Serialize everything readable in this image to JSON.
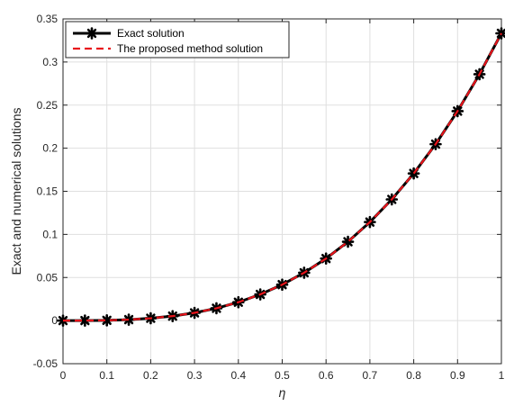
{
  "chart_data": {
    "type": "line",
    "xlabel": "η",
    "ylabel": "Exact and numerical solutions",
    "xlim": [
      0,
      1
    ],
    "ylim": [
      -0.05,
      0.35
    ],
    "grid": true,
    "legend_position": "top-left",
    "xticks": [
      "0",
      "0.1",
      "0.2",
      "0.3",
      "0.4",
      "0.5",
      "0.6",
      "0.7",
      "0.8",
      "0.9",
      "1"
    ],
    "yticks": [
      "-0.05",
      "0",
      "0.05",
      "0.1",
      "0.15",
      "0.2",
      "0.25",
      "0.3",
      "0.35"
    ],
    "x": [
      0,
      0.05,
      0.1,
      0.15,
      0.2,
      0.25,
      0.3,
      0.35,
      0.4,
      0.45,
      0.5,
      0.55,
      0.6,
      0.65,
      0.7,
      0.75,
      0.8,
      0.85,
      0.9,
      0.95,
      1
    ],
    "series": [
      {
        "name": "Exact solution",
        "color": "#000000",
        "style": "solid-with-star-markers",
        "values": [
          0,
          4e-05,
          0.0003,
          0.0011,
          0.0027,
          0.0052,
          0.009,
          0.0143,
          0.0213,
          0.0304,
          0.0417,
          0.0555,
          0.072,
          0.0915,
          0.1143,
          0.1406,
          0.1707,
          0.2047,
          0.243,
          0.2858,
          0.3333
        ]
      },
      {
        "name": "The proposed method solution",
        "color": "#e8141b",
        "style": "dashed",
        "values": [
          0,
          4e-05,
          0.0003,
          0.0011,
          0.0027,
          0.0052,
          0.009,
          0.0143,
          0.0213,
          0.0304,
          0.0417,
          0.0555,
          0.072,
          0.0915,
          0.1143,
          0.1406,
          0.1707,
          0.2047,
          0.243,
          0.2858,
          0.3333
        ]
      }
    ]
  }
}
